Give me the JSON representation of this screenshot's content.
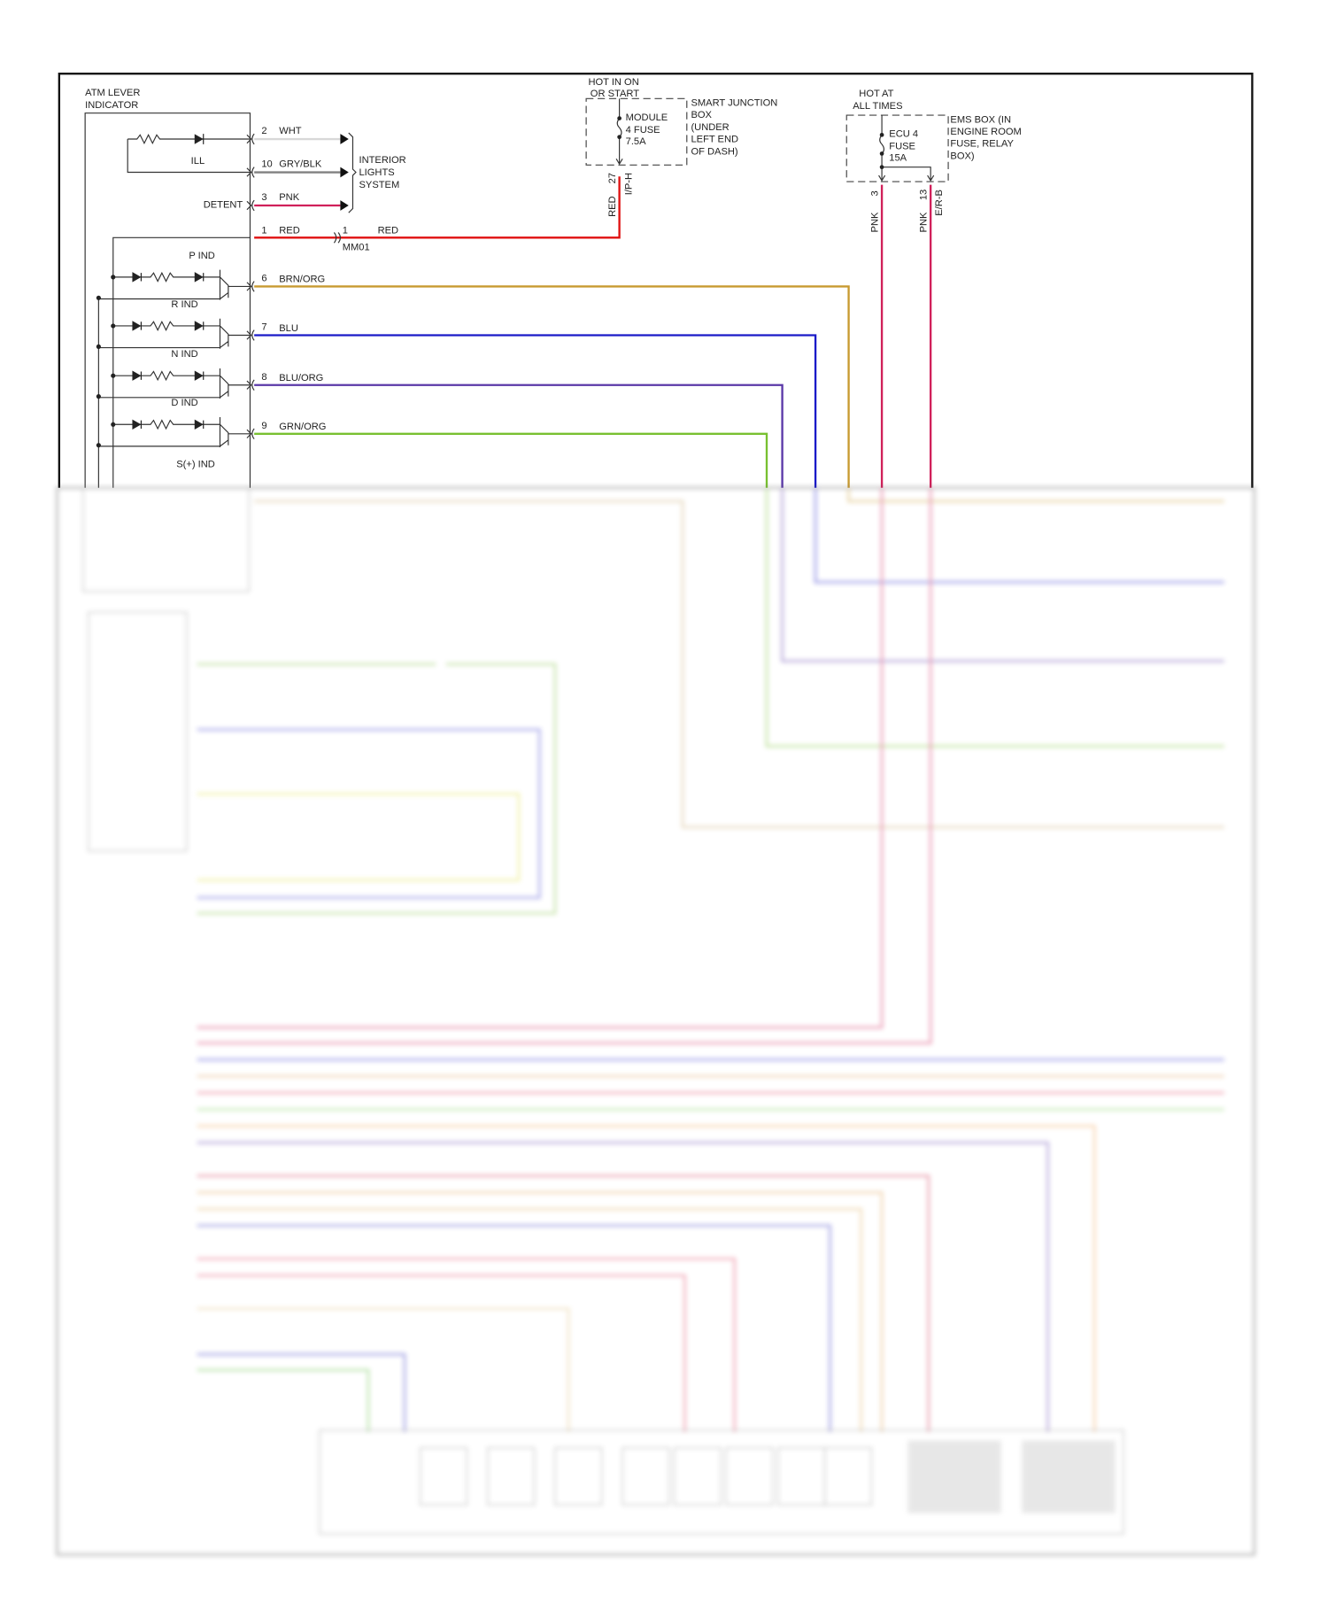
{
  "lever": {
    "title_line1": "ATM LEVER",
    "title_line2": "INDICATOR",
    "ill": "ILL",
    "detent": "DETENT",
    "indicators": [
      "P IND",
      "R IND",
      "N IND",
      "D IND",
      "S(+) IND"
    ]
  },
  "interior": {
    "line1": "INTERIOR",
    "line2": "LIGHTS",
    "line3": "SYSTEM"
  },
  "interior_wires": [
    {
      "pin": "2",
      "color_name": "WHT",
      "color": "#d8d8d8"
    },
    {
      "pin": "10",
      "color_name": "GRY/BLK",
      "color": "#808080"
    },
    {
      "pin": "3",
      "color_name": "PNK",
      "color": "#d0205a"
    }
  ],
  "power_wire": {
    "pin": "1",
    "color_name": "RED",
    "connector_pin": "1",
    "connector_color": "RED",
    "connector": "MM01",
    "color": "#e01010"
  },
  "indicator_wires": [
    {
      "pin": "6",
      "color_name": "BRN/ORG",
      "color": "#c89a30"
    },
    {
      "pin": "7",
      "color_name": "BLU",
      "color": "#1a1ac8"
    },
    {
      "pin": "8",
      "color_name": "BLU/ORG",
      "color": "#5a38a8"
    },
    {
      "pin": "9",
      "color_name": "GRN/ORG",
      "color": "#78c030"
    }
  ],
  "sjb": {
    "hot1": "HOT IN ON",
    "hot2": "OR START",
    "fuse1": "MODULE",
    "fuse2": "4 FUSE",
    "fuse3": "7.5A",
    "box": [
      "SMART JUNCTION",
      "BOX",
      "(UNDER",
      "LEFT END",
      "OF DASH)"
    ],
    "pin": "27",
    "connector": "I/P-H",
    "wire_color": "RED"
  },
  "ems": {
    "hot1": "HOT AT",
    "hot2": "ALL TIMES",
    "fuse1": "ECU 4",
    "fuse2": "FUSE",
    "fuse3": "15A",
    "box": [
      "EMS BOX (IN",
      "ENGINE ROOM",
      "FUSE, RELAY",
      "BOX)"
    ],
    "pin_a": "3",
    "wire_a": "PNK",
    "pin_b": "13",
    "wire_b": "PNK",
    "connector": "E/R-B",
    "color": "#d0205a"
  }
}
